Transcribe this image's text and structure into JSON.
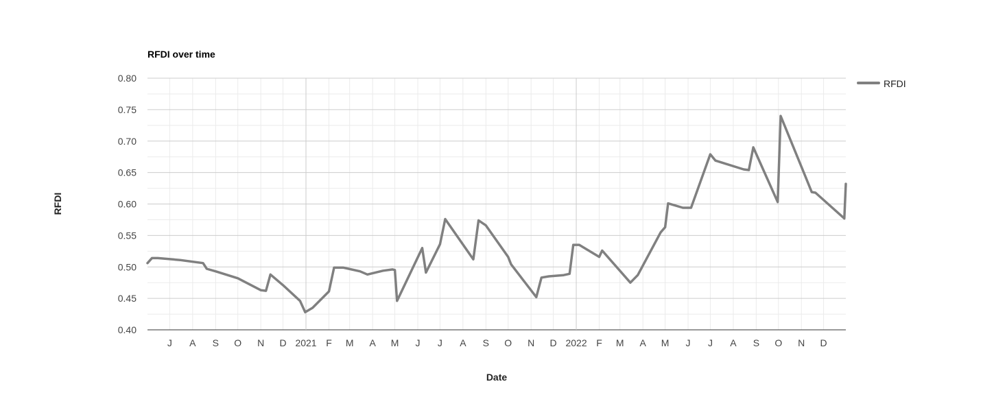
{
  "chart_data": {
    "type": "line",
    "title": "RFDI over time",
    "xlabel": "Date",
    "ylabel": "RFDI",
    "ylim": [
      0.4,
      0.8
    ],
    "yticks": [
      "0.80",
      "0.75",
      "0.70",
      "0.65",
      "0.60",
      "0.55",
      "0.50",
      "0.45",
      "0.40"
    ],
    "xlim": [
      "2020-06-01",
      "2022-12-31"
    ],
    "xticks": [
      {
        "date": "2020-07-01",
        "label": "J"
      },
      {
        "date": "2020-08-01",
        "label": "A"
      },
      {
        "date": "2020-09-01",
        "label": "S"
      },
      {
        "date": "2020-10-01",
        "label": "O"
      },
      {
        "date": "2020-11-01",
        "label": "N"
      },
      {
        "date": "2020-12-01",
        "label": "D"
      },
      {
        "date": "2021-01-01",
        "label": "2021"
      },
      {
        "date": "2021-02-01",
        "label": "F"
      },
      {
        "date": "2021-03-01",
        "label": "M"
      },
      {
        "date": "2021-04-01",
        "label": "A"
      },
      {
        "date": "2021-05-01",
        "label": "M"
      },
      {
        "date": "2021-06-01",
        "label": "J"
      },
      {
        "date": "2021-07-01",
        "label": "J"
      },
      {
        "date": "2021-08-01",
        "label": "A"
      },
      {
        "date": "2021-09-01",
        "label": "S"
      },
      {
        "date": "2021-10-01",
        "label": "O"
      },
      {
        "date": "2021-11-01",
        "label": "N"
      },
      {
        "date": "2021-12-01",
        "label": "D"
      },
      {
        "date": "2022-01-01",
        "label": "2022"
      },
      {
        "date": "2022-02-01",
        "label": "F"
      },
      {
        "date": "2022-03-01",
        "label": "M"
      },
      {
        "date": "2022-04-01",
        "label": "A"
      },
      {
        "date": "2022-05-01",
        "label": "M"
      },
      {
        "date": "2022-06-01",
        "label": "J"
      },
      {
        "date": "2022-07-01",
        "label": "J"
      },
      {
        "date": "2022-08-01",
        "label": "A"
      },
      {
        "date": "2022-09-01",
        "label": "S"
      },
      {
        "date": "2022-10-01",
        "label": "O"
      },
      {
        "date": "2022-11-01",
        "label": "N"
      },
      {
        "date": "2022-12-01",
        "label": "D"
      }
    ],
    "grid": true,
    "legend": "top-right",
    "series": [
      {
        "name": "RFDI",
        "color": "#808080",
        "points": [
          [
            "2020-06-01",
            0.506
          ],
          [
            "2020-06-07",
            0.514
          ],
          [
            "2020-06-15",
            0.514
          ],
          [
            "2020-07-15",
            0.511
          ],
          [
            "2020-08-15",
            0.506
          ],
          [
            "2020-08-20",
            0.497
          ],
          [
            "2020-09-01",
            0.493
          ],
          [
            "2020-10-01",
            0.482
          ],
          [
            "2020-11-01",
            0.463
          ],
          [
            "2020-11-08",
            0.462
          ],
          [
            "2020-11-14",
            0.488
          ],
          [
            "2020-12-01",
            0.471
          ],
          [
            "2020-12-24",
            0.446
          ],
          [
            "2020-12-31",
            0.428
          ],
          [
            "2021-01-10",
            0.435
          ],
          [
            "2021-02-01",
            0.461
          ],
          [
            "2021-02-08",
            0.499
          ],
          [
            "2021-02-20",
            0.499
          ],
          [
            "2021-03-15",
            0.493
          ],
          [
            "2021-03-25",
            0.488
          ],
          [
            "2021-04-15",
            0.494
          ],
          [
            "2021-04-28",
            0.496
          ],
          [
            "2021-05-01",
            0.495
          ],
          [
            "2021-05-04",
            0.446
          ],
          [
            "2021-06-07",
            0.53
          ],
          [
            "2021-06-12",
            0.491
          ],
          [
            "2021-07-01",
            0.536
          ],
          [
            "2021-07-08",
            0.576
          ],
          [
            "2021-08-15",
            0.512
          ],
          [
            "2021-08-22",
            0.574
          ],
          [
            "2021-09-01",
            0.566
          ],
          [
            "2021-10-01",
            0.516
          ],
          [
            "2021-10-05",
            0.504
          ],
          [
            "2021-11-08",
            0.452
          ],
          [
            "2021-11-15",
            0.483
          ],
          [
            "2021-11-25",
            0.485
          ],
          [
            "2021-12-15",
            0.487
          ],
          [
            "2021-12-23",
            0.489
          ],
          [
            "2021-12-28",
            0.535
          ],
          [
            "2022-01-05",
            0.535
          ],
          [
            "2022-02-01",
            0.516
          ],
          [
            "2022-02-05",
            0.526
          ],
          [
            "2022-03-15",
            0.475
          ],
          [
            "2022-03-25",
            0.487
          ],
          [
            "2022-04-25",
            0.555
          ],
          [
            "2022-05-01",
            0.563
          ],
          [
            "2022-05-05",
            0.601
          ],
          [
            "2022-05-25",
            0.594
          ],
          [
            "2022-06-05",
            0.594
          ],
          [
            "2022-07-01",
            0.679
          ],
          [
            "2022-07-08",
            0.669
          ],
          [
            "2022-08-15",
            0.655
          ],
          [
            "2022-08-22",
            0.654
          ],
          [
            "2022-08-28",
            0.69
          ],
          [
            "2022-09-30",
            0.603
          ],
          [
            "2022-10-04",
            0.74
          ],
          [
            "2022-11-05",
            0.648
          ],
          [
            "2022-11-15",
            0.619
          ],
          [
            "2022-11-20",
            0.618
          ],
          [
            "2022-12-29",
            0.577
          ],
          [
            "2022-12-31",
            0.632
          ]
        ]
      }
    ]
  }
}
